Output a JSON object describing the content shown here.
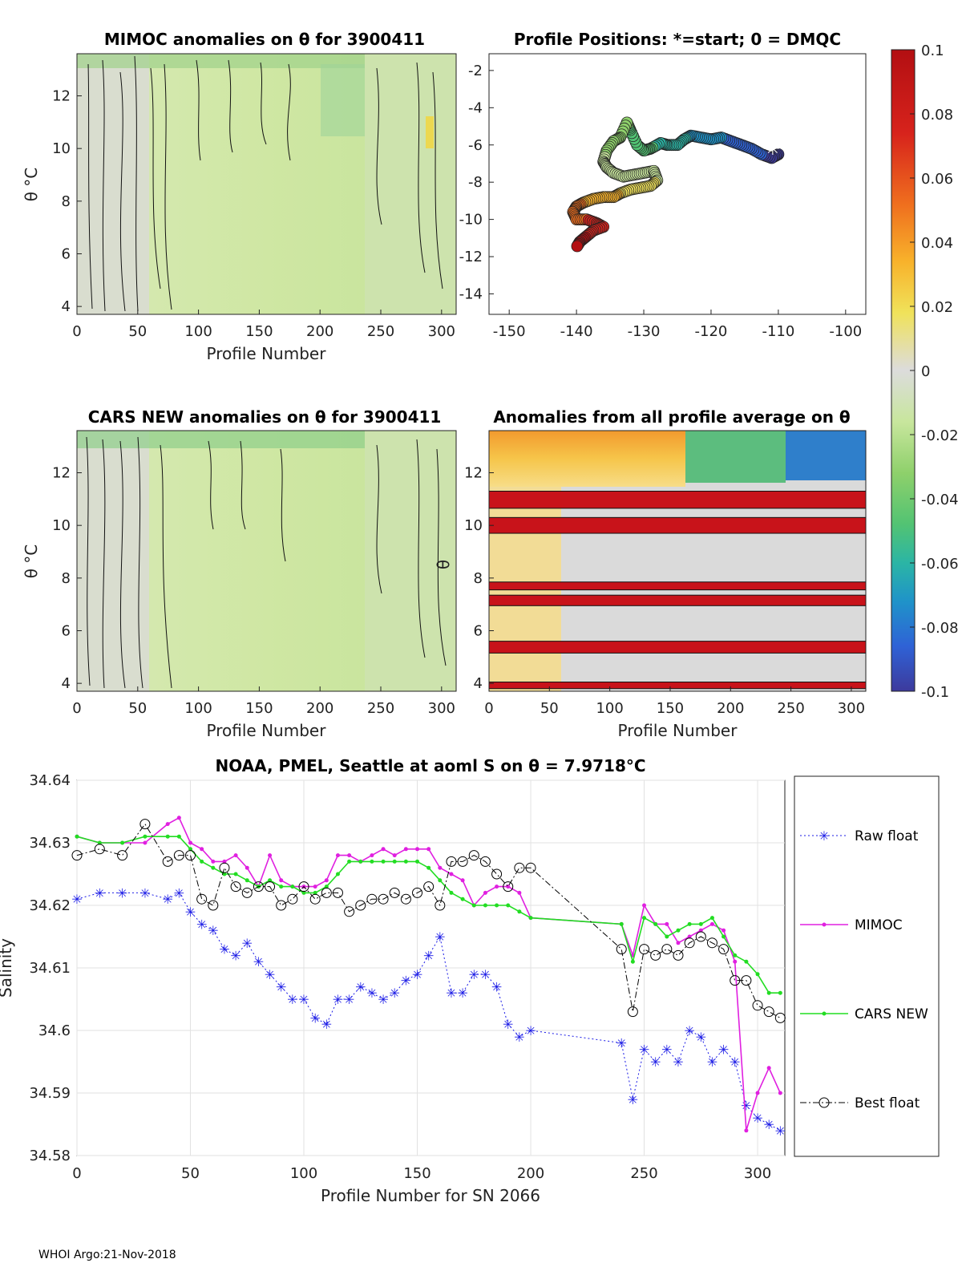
{
  "footer": "WHOI Argo:21-Nov-2018",
  "colormap": [
    "#3d3a9c",
    "#2f62d6",
    "#1f93c9",
    "#2bb5a5",
    "#52c373",
    "#8ed06b",
    "#c8e69d",
    "#dcdcdc",
    "#f0e25a",
    "#f8b22b",
    "#ef6e1e",
    "#d7231c",
    "#b30f12"
  ],
  "colorbar": {
    "ticks": [
      "0.1",
      "0.08",
      "0.06",
      "0.04",
      "0.02",
      "0",
      "-0.02",
      "-0.04",
      "-0.06",
      "-0.08",
      "-0.1"
    ]
  },
  "charts": {
    "mimoc": {
      "title": "MIMOC anomalies on θ  for 3900411",
      "type": "heatmap",
      "xlabel": "Profile Number",
      "ylabel": "θ °C",
      "xticks": [
        "0",
        "50",
        "100",
        "150",
        "200",
        "250",
        "300"
      ],
      "yticks": [
        "4",
        "6",
        "8",
        "10",
        "12"
      ],
      "xlim": [
        0,
        312
      ],
      "ylim": [
        3.7,
        13.6
      ]
    },
    "positions": {
      "title": "Profile Positions: *=start; 0 = DMQC",
      "type": "scatter",
      "xticks": [
        "-150",
        "-140",
        "-130",
        "-120",
        "-110",
        "-100"
      ],
      "yticks": [
        "-2",
        "-4",
        "-6",
        "-8",
        "-10",
        "-12",
        "-14"
      ],
      "xlim": [
        -153,
        -97
      ],
      "ylim": [
        -15.1,
        -1.1
      ],
      "track": [
        [
          -110,
          -6.5
        ],
        [
          -111,
          -6.7
        ],
        [
          -112.5,
          -6.5
        ],
        [
          -114,
          -6.2
        ],
        [
          -115.5,
          -6.0
        ],
        [
          -117,
          -5.8
        ],
        [
          -118.5,
          -5.6
        ],
        [
          -120,
          -5.7
        ],
        [
          -121.5,
          -5.6
        ],
        [
          -123,
          -5.5
        ],
        [
          -124,
          -5.7
        ],
        [
          -125,
          -6.0
        ],
        [
          -126.5,
          -6.0
        ],
        [
          -127.5,
          -5.9
        ],
        [
          -129,
          -6.2
        ],
        [
          -130,
          -6.3
        ],
        [
          -131,
          -6.0
        ],
        [
          -132,
          -5.2
        ],
        [
          -132.5,
          -4.8
        ],
        [
          -133.5,
          -5.6
        ],
        [
          -134.5,
          -5.8
        ],
        [
          -135.5,
          -6.3
        ],
        [
          -136,
          -6.9
        ],
        [
          -135.5,
          -7.2
        ],
        [
          -134.5,
          -7.5
        ],
        [
          -133,
          -7.7
        ],
        [
          -131.5,
          -7.6
        ],
        [
          -130,
          -7.5
        ],
        [
          -128.5,
          -7.4
        ],
        [
          -128,
          -7.9
        ],
        [
          -129,
          -8.2
        ],
        [
          -130.5,
          -8.3
        ],
        [
          -132,
          -8.4
        ],
        [
          -133.5,
          -8.6
        ],
        [
          -134.5,
          -8.8
        ],
        [
          -136,
          -8.8
        ],
        [
          -137.5,
          -8.9
        ],
        [
          -139,
          -9.1
        ],
        [
          -140,
          -9.3
        ],
        [
          -140.5,
          -9.6
        ],
        [
          -140,
          -10.0
        ],
        [
          -138.5,
          -10.0
        ],
        [
          -137,
          -10.2
        ],
        [
          -136,
          -10.4
        ],
        [
          -137.5,
          -10.6
        ],
        [
          -138.5,
          -10.9
        ],
        [
          -139.5,
          -11.2
        ],
        [
          -140,
          -11.5
        ]
      ]
    },
    "cars": {
      "title": "CARS NEW anomalies on θ for 3900411",
      "type": "heatmap",
      "xlabel": "Profile Number",
      "ylabel": "θ °C",
      "xticks": [
        "0",
        "50",
        "100",
        "150",
        "200",
        "250",
        "300"
      ],
      "yticks": [
        "4",
        "6",
        "8",
        "10",
        "12"
      ],
      "xlim": [
        0,
        312
      ],
      "ylim": [
        3.7,
        13.6
      ]
    },
    "avg": {
      "title": "Anomalies from all profile average on θ",
      "type": "heatmap",
      "xlabel": "Profile Number",
      "ylabel": "θ",
      "xticks": [
        "0",
        "50",
        "100",
        "150",
        "200",
        "250",
        "300"
      ],
      "yticks": [
        "4",
        "6",
        "8",
        "10",
        "12"
      ],
      "xlim": [
        0,
        312
      ],
      "ylim": [
        3.7,
        13.6
      ],
      "red_bands": [
        [
          3.8,
          4.05
        ],
        [
          5.15,
          5.6
        ],
        [
          6.95,
          7.35
        ],
        [
          7.55,
          7.85
        ],
        [
          9.7,
          10.3
        ],
        [
          10.65,
          11.3
        ]
      ]
    }
  },
  "chart_data": {
    "type": "line",
    "title": "NOAA, PMEL, Seattle at aoml S on θ = 7.9718°C",
    "xlabel": "Profile Number for SN 2066",
    "ylabel": "Salinity",
    "xlim": [
      0,
      312
    ],
    "ylim": [
      34.58,
      34.64
    ],
    "xticks": [
      "0",
      "50",
      "100",
      "150",
      "200",
      "250",
      "300"
    ],
    "yticks": [
      "34.64",
      "34.63",
      "34.62",
      "34.61",
      "34.6",
      "34.59",
      "34.58"
    ],
    "legend_position": "outside-right",
    "series": [
      {
        "name": "Raw float",
        "color": "#1a1ae6",
        "marker": "star",
        "x": [
          0,
          10,
          20,
          30,
          40,
          45,
          50,
          55,
          60,
          65,
          70,
          75,
          80,
          85,
          90,
          95,
          100,
          105,
          110,
          115,
          120,
          125,
          130,
          135,
          140,
          145,
          150,
          155,
          160,
          165,
          170,
          175,
          180,
          185,
          190,
          195,
          200,
          240,
          245,
          250,
          255,
          260,
          265,
          270,
          275,
          280,
          285,
          290,
          295,
          300,
          305,
          310
        ],
        "y": [
          34.621,
          34.622,
          34.622,
          34.622,
          34.621,
          34.622,
          34.619,
          34.617,
          34.616,
          34.613,
          34.612,
          34.614,
          34.611,
          34.609,
          34.607,
          34.605,
          34.605,
          34.602,
          34.601,
          34.605,
          34.605,
          34.607,
          34.606,
          34.605,
          34.606,
          34.608,
          34.609,
          34.612,
          34.615,
          34.606,
          34.606,
          34.609,
          34.609,
          34.607,
          34.601,
          34.599,
          34.6,
          34.598,
          34.589,
          34.597,
          34.595,
          34.597,
          34.595,
          34.6,
          34.599,
          34.595,
          34.597,
          34.595,
          34.588,
          34.586,
          34.585,
          34.584
        ]
      },
      {
        "name": "MIMOC",
        "color": "#e020e0",
        "marker": "dot",
        "x": [
          0,
          10,
          20,
          30,
          40,
          45,
          50,
          55,
          60,
          65,
          70,
          75,
          80,
          85,
          90,
          95,
          100,
          105,
          110,
          115,
          120,
          125,
          130,
          135,
          140,
          145,
          150,
          155,
          160,
          165,
          170,
          175,
          180,
          185,
          190,
          195,
          200,
          240,
          245,
          250,
          255,
          260,
          265,
          270,
          275,
          280,
          285,
          290,
          295,
          300,
          305,
          310
        ],
        "y": [
          34.631,
          34.63,
          34.63,
          34.63,
          34.633,
          34.634,
          34.63,
          34.629,
          34.627,
          34.627,
          34.628,
          34.626,
          34.623,
          34.628,
          34.624,
          34.623,
          34.623,
          34.623,
          34.624,
          34.628,
          34.628,
          34.627,
          34.628,
          34.629,
          34.628,
          34.629,
          34.629,
          34.629,
          34.626,
          34.625,
          34.624,
          34.62,
          34.622,
          34.623,
          34.623,
          34.622,
          34.618,
          34.617,
          34.612,
          34.62,
          34.617,
          34.617,
          34.614,
          34.615,
          34.616,
          34.617,
          34.616,
          34.611,
          34.584,
          34.59,
          34.594,
          34.59
        ]
      },
      {
        "name": "CARS NEW",
        "color": "#22dd22",
        "marker": "dot",
        "x": [
          0,
          10,
          20,
          30,
          40,
          45,
          50,
          55,
          60,
          65,
          70,
          75,
          80,
          85,
          90,
          95,
          100,
          105,
          110,
          115,
          120,
          125,
          130,
          135,
          140,
          145,
          150,
          155,
          160,
          165,
          170,
          175,
          180,
          185,
          190,
          195,
          200,
          240,
          245,
          250,
          255,
          260,
          265,
          270,
          275,
          280,
          285,
          290,
          295,
          300,
          305,
          310
        ],
        "y": [
          34.631,
          34.63,
          34.63,
          34.631,
          34.631,
          34.631,
          34.629,
          34.627,
          34.626,
          34.625,
          34.625,
          34.624,
          34.623,
          34.624,
          34.623,
          34.623,
          34.622,
          34.622,
          34.623,
          34.625,
          34.627,
          34.627,
          34.627,
          34.627,
          34.627,
          34.627,
          34.627,
          34.626,
          34.624,
          34.622,
          34.621,
          34.62,
          34.62,
          34.62,
          34.62,
          34.619,
          34.618,
          34.617,
          34.611,
          34.618,
          34.617,
          34.615,
          34.616,
          34.617,
          34.617,
          34.618,
          34.615,
          34.612,
          34.611,
          34.609,
          34.606,
          34.606
        ]
      },
      {
        "name": "Best float",
        "color": "#000000",
        "marker": "circle",
        "x": [
          0,
          10,
          20,
          30,
          40,
          45,
          50,
          55,
          60,
          65,
          70,
          75,
          80,
          85,
          90,
          95,
          100,
          105,
          110,
          115,
          120,
          125,
          130,
          135,
          140,
          145,
          150,
          155,
          160,
          165,
          170,
          175,
          180,
          185,
          190,
          195,
          200,
          240,
          245,
          250,
          255,
          260,
          265,
          270,
          275,
          280,
          285,
          290,
          295,
          300,
          305,
          310
        ],
        "y": [
          34.628,
          34.629,
          34.628,
          34.633,
          34.627,
          34.628,
          34.628,
          34.621,
          34.62,
          34.626,
          34.623,
          34.622,
          34.623,
          34.623,
          34.62,
          34.621,
          34.623,
          34.621,
          34.622,
          34.622,
          34.619,
          34.62,
          34.621,
          34.621,
          34.622,
          34.621,
          34.622,
          34.623,
          34.62,
          34.627,
          34.627,
          34.628,
          34.627,
          34.625,
          34.623,
          34.626,
          34.626,
          34.613,
          34.603,
          34.613,
          34.612,
          34.613,
          34.612,
          34.614,
          34.615,
          34.614,
          34.613,
          34.608,
          34.608,
          34.604,
          34.603,
          34.602
        ]
      }
    ]
  }
}
